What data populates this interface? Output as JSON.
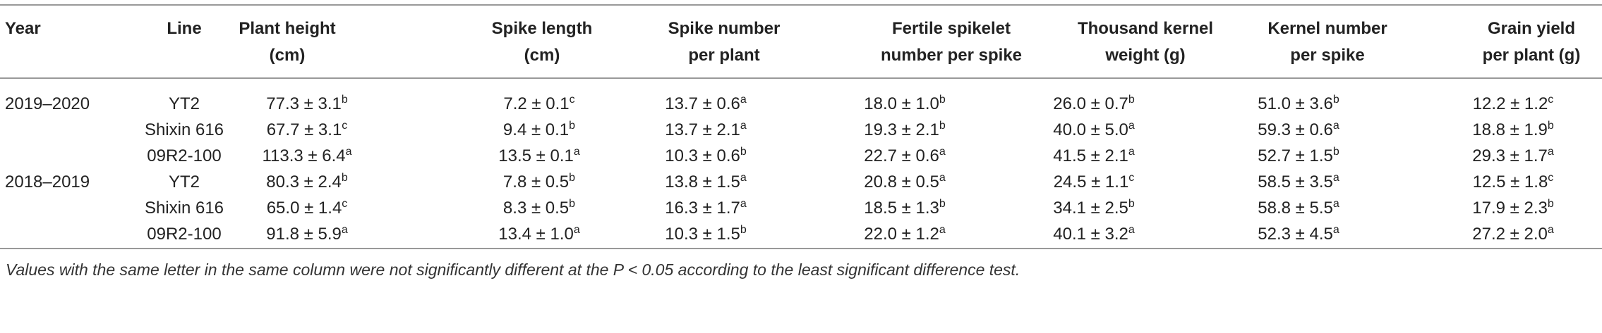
{
  "table": {
    "header": [
      "Year",
      "Line",
      "Plant height\n(cm)",
      "Spike length\n(cm)",
      "Spike number\nper plant",
      "Fertile spikelet\nnumber per spike",
      "Thousand kernel\nweight (g)",
      "Kernel number\nper spike",
      "Grain yield\nper plant (g)"
    ],
    "rows": [
      {
        "year": "2019–2020",
        "line": "YT2",
        "cells": [
          {
            "value": "77.3 ± 3.1",
            "sup": "b"
          },
          {
            "value": "7.2 ± 0.1",
            "sup": "c"
          },
          {
            "value": "13.7 ± 0.6",
            "sup": "a"
          },
          {
            "value": "18.0 ± 1.0",
            "sup": "b"
          },
          {
            "value": "26.0 ± 0.7",
            "sup": "b"
          },
          {
            "value": "51.0 ± 3.6",
            "sup": "b"
          },
          {
            "value": "12.2 ± 1.2",
            "sup": "c"
          }
        ]
      },
      {
        "line": "Shixin 616",
        "cells": [
          {
            "value": "67.7 ± 3.1",
            "sup": "c"
          },
          {
            "value": "9.4 ± 0.1",
            "sup": "b"
          },
          {
            "value": "13.7 ± 2.1",
            "sup": "a"
          },
          {
            "value": "19.3 ± 2.1",
            "sup": "b"
          },
          {
            "value": "40.0 ± 5.0",
            "sup": "a"
          },
          {
            "value": "59.3 ± 0.6",
            "sup": "a"
          },
          {
            "value": "18.8 ± 1.9",
            "sup": "b"
          }
        ]
      },
      {
        "line": "09R2-100",
        "cells": [
          {
            "value": "113.3 ± 6.4",
            "sup": "a"
          },
          {
            "value": "13.5 ± 0.1",
            "sup": "a"
          },
          {
            "value": "10.3 ± 0.6",
            "sup": "b"
          },
          {
            "value": "22.7 ± 0.6",
            "sup": "a"
          },
          {
            "value": "41.5 ± 2.1",
            "sup": "a"
          },
          {
            "value": "52.7 ± 1.5",
            "sup": "b"
          },
          {
            "value": "29.3 ± 1.7",
            "sup": "a"
          }
        ]
      },
      {
        "year": "2018–2019",
        "line": "YT2",
        "cells": [
          {
            "value": "80.3 ± 2.4",
            "sup": "b"
          },
          {
            "value": "7.8 ± 0.5",
            "sup": "b"
          },
          {
            "value": "13.8 ± 1.5",
            "sup": "a"
          },
          {
            "value": "20.8 ± 0.5",
            "sup": "a"
          },
          {
            "value": "24.5 ± 1.1",
            "sup": "c"
          },
          {
            "value": "58.5 ± 3.5",
            "sup": "a"
          },
          {
            "value": "12.5 ± 1.8",
            "sup": "c"
          }
        ]
      },
      {
        "line": "Shixin 616",
        "cells": [
          {
            "value": "65.0 ± 1.4",
            "sup": "c"
          },
          {
            "value": "8.3 ± 0.5",
            "sup": "b"
          },
          {
            "value": "16.3 ± 1.7",
            "sup": "a"
          },
          {
            "value": "18.5 ± 1.3",
            "sup": "b"
          },
          {
            "value": "34.1 ± 2.5",
            "sup": "b"
          },
          {
            "value": "58.8 ± 5.5",
            "sup": "a"
          },
          {
            "value": "17.9 ± 2.3",
            "sup": "b"
          }
        ]
      },
      {
        "line": "09R2-100",
        "cells": [
          {
            "value": "91.8 ± 5.9",
            "sup": "a"
          },
          {
            "value": "13.4 ± 1.0",
            "sup": "a"
          },
          {
            "value": "10.3 ± 1.5",
            "sup": "b"
          },
          {
            "value": "22.0 ± 1.2",
            "sup": "a"
          },
          {
            "value": "40.1 ± 3.2",
            "sup": "a"
          },
          {
            "value": "52.3 ± 4.5",
            "sup": "a"
          },
          {
            "value": "27.2 ± 2.0",
            "sup": "a"
          }
        ]
      }
    ],
    "footnote": "Values with the same letter in the same column were not significantly different at the P < 0.05 according to the least significant difference test."
  }
}
